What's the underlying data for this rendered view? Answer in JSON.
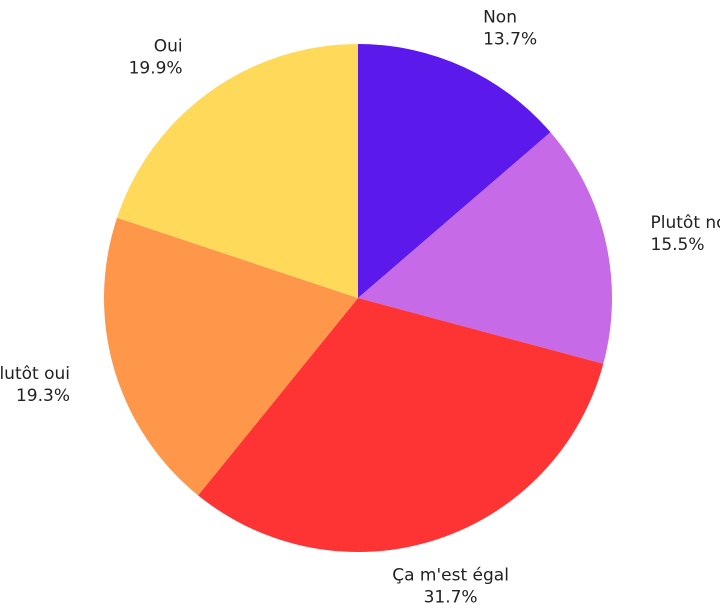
{
  "chart_data": {
    "type": "pie",
    "slices": [
      {
        "name": "Non",
        "value": 13.7,
        "label": "13.7%",
        "color": "#5b19ec"
      },
      {
        "name": "Plutôt non",
        "value": 15.5,
        "label": "15.5%",
        "color": "#c66ae8"
      },
      {
        "name": "Ça m'est égal",
        "value": 31.7,
        "label": "31.7%",
        "color": "#fe3434"
      },
      {
        "name": "Plutôt oui",
        "value": 19.3,
        "label": "19.3%",
        "color": "#fe974a"
      },
      {
        "name": "Oui",
        "value": 19.9,
        "label": "19.9%",
        "color": "#ffd95a"
      }
    ],
    "start_position": "top",
    "direction": "clockwise",
    "legend": "none"
  }
}
